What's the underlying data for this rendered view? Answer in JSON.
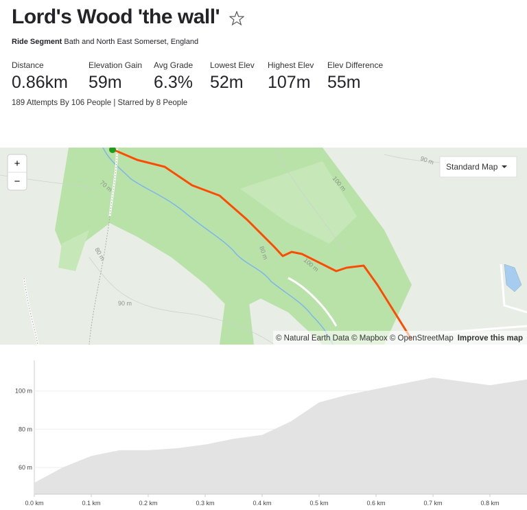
{
  "header": {
    "title": "Lord's Wood 'the wall'",
    "segment_type": "Ride Segment",
    "location": "Bath and North East Somerset, England"
  },
  "stats": [
    {
      "label": "Distance",
      "value": "0.86km"
    },
    {
      "label": "Elevation Gain",
      "value": "59m"
    },
    {
      "label": "Avg Grade",
      "value": "6.3%"
    },
    {
      "label": "Lowest Elev",
      "value": "52m"
    },
    {
      "label": "Highest Elev",
      "value": "107m"
    },
    {
      "label": "Elev Difference",
      "value": "55m"
    }
  ],
  "attempts": "189 Attempts By 106 People | Starred by 8 People",
  "map": {
    "zoom_in": "+",
    "zoom_out": "−",
    "style_button": "Standard Map",
    "contour_labels": [
      "70 m",
      "80 m",
      "80 m",
      "90 m",
      "90 m",
      "100 m",
      "100 m"
    ],
    "attribution": "© Natural Earth Data © Mapbox © OpenStreetMap",
    "improve": "Improve this map"
  },
  "elevation_chart": {
    "type": "area",
    "x": [
      0,
      0.05,
      0.1,
      0.15,
      0.2,
      0.25,
      0.3,
      0.35,
      0.4,
      0.45,
      0.5,
      0.55,
      0.6,
      0.65,
      0.7,
      0.75,
      0.8,
      0.865
    ],
    "values": [
      52,
      60,
      66,
      69,
      69,
      70,
      72,
      75,
      77,
      84,
      94,
      98,
      101,
      104,
      107,
      105,
      103,
      106
    ],
    "color": "#e3e3e3",
    "xlim": [
      0,
      0.865
    ],
    "ylim": [
      46,
      116
    ],
    "xticks": [
      {
        "value": 0,
        "label": "0.0 km"
      },
      {
        "value": 0.1,
        "label": "0.1 km"
      },
      {
        "value": 0.2,
        "label": "0.2 km"
      },
      {
        "value": 0.3,
        "label": "0.3 km"
      },
      {
        "value": 0.4,
        "label": "0.4 km"
      },
      {
        "value": 0.5,
        "label": "0.5 km"
      },
      {
        "value": 0.6,
        "label": "0.6 km"
      },
      {
        "value": 0.7,
        "label": "0.7 km"
      },
      {
        "value": 0.8,
        "label": "0.8 km"
      }
    ],
    "yticks": [
      {
        "value": 60,
        "label": "60 m"
      },
      {
        "value": 80,
        "label": "80 m"
      },
      {
        "value": 100,
        "label": "100 m"
      }
    ],
    "grid": true
  }
}
